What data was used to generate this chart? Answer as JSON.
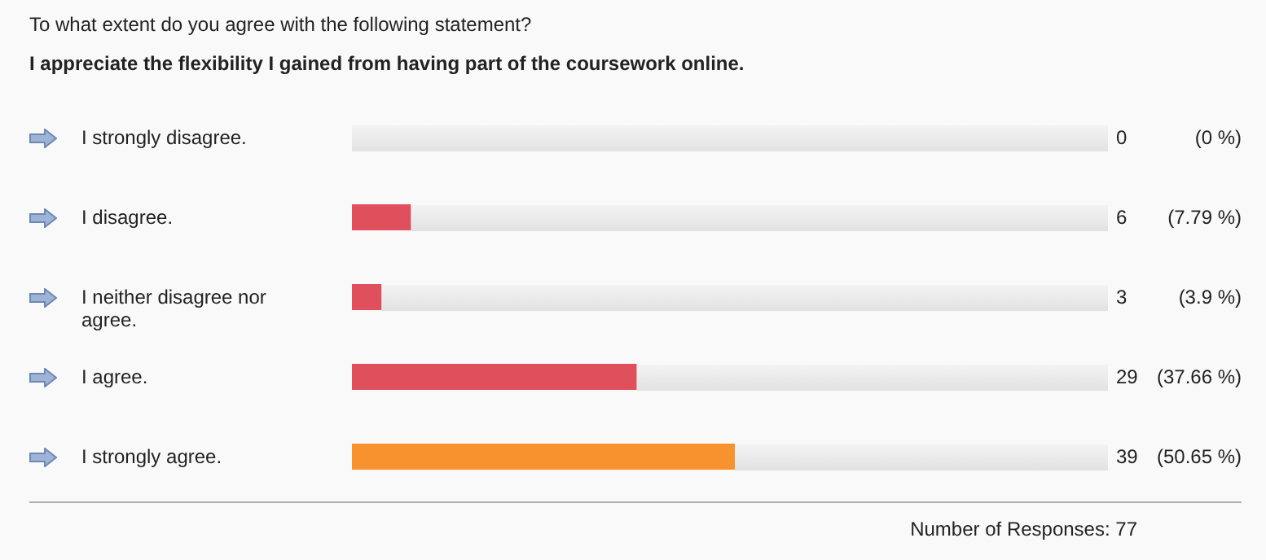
{
  "chart_data": {
    "type": "bar",
    "orientation": "horizontal",
    "title": "To what extent do you agree with the following statement?",
    "subtitle": "I appreciate the flexibility I gained from having part of the coursework online.",
    "categories": [
      "I strongly disagree.",
      "I disagree.",
      "I neither disagree nor agree.",
      "I agree.",
      "I strongly agree."
    ],
    "values": [
      0,
      7.79,
      3.9,
      37.66,
      50.65
    ],
    "colors": [
      "#e0505c",
      "#e0505c",
      "#e0505c",
      "#e0505c",
      "#f7922e"
    ],
    "xlim": [
      0,
      100
    ],
    "value_labels": [
      "(0 %)",
      "(7.79 %)",
      "(3.9 %)",
      "(37.66 %)",
      "(50.65 %)"
    ],
    "tick_labels": false,
    "annotations": [
      "0",
      "6",
      "3",
      "29",
      "39",
      "Number of Responses: 77"
    ]
  }
}
